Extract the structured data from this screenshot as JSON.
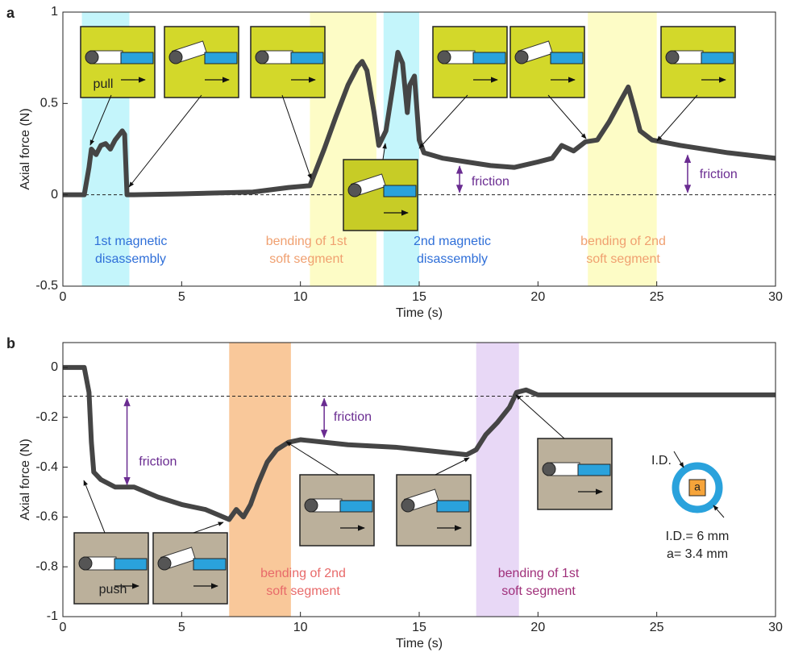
{
  "chart_data": [
    {
      "type": "line",
      "panel_label": "a",
      "xlabel": "Time (s)",
      "ylabel": "Axial force (N)",
      "xlim": [
        0,
        30
      ],
      "ylim": [
        -0.5,
        1
      ],
      "xticks": [
        0,
        5,
        10,
        15,
        20,
        25,
        30
      ],
      "yticks": [
        -0.5,
        0,
        0.5,
        1
      ],
      "reference_line": 0,
      "x": [
        0,
        0.9,
        1.1,
        1.2,
        1.4,
        1.6,
        1.8,
        2.0,
        2.2,
        2.5,
        2.6,
        2.7,
        3,
        5,
        8,
        9.5,
        10.4,
        11,
        11.5,
        12,
        12.4,
        12.6,
        12.8,
        13.1,
        13.3,
        13.6,
        13.9,
        14.1,
        14.3,
        14.5,
        14.6,
        14.8,
        15,
        15.2,
        16,
        17,
        18,
        19,
        20,
        20.6,
        21,
        21.5,
        22,
        22.5,
        23,
        23.5,
        23.8,
        24.1,
        24.3,
        24.8,
        26,
        28,
        30
      ],
      "series": [
        {
          "color": "#454545",
          "values": [
            0,
            0,
            0.15,
            0.25,
            0.22,
            0.27,
            0.28,
            0.25,
            0.3,
            0.35,
            0.33,
            0,
            0,
            0.005,
            0.015,
            0.04,
            0.05,
            0.25,
            0.43,
            0.6,
            0.7,
            0.73,
            0.68,
            0.45,
            0.27,
            0.35,
            0.6,
            0.78,
            0.72,
            0.45,
            0.6,
            0.65,
            0.3,
            0.23,
            0.2,
            0.18,
            0.16,
            0.15,
            0.18,
            0.2,
            0.27,
            0.24,
            0.29,
            0.3,
            0.4,
            0.52,
            0.59,
            0.45,
            0.35,
            0.3,
            0.27,
            0.23,
            0.2
          ]
        }
      ],
      "spans": [
        {
          "start": 0.8,
          "end": 2.8,
          "color": "#c4f5fb",
          "label_color": "#2f6fd8",
          "label": [
            "1st magnetic",
            "disassembly"
          ]
        },
        {
          "start": 10.4,
          "end": 13.2,
          "color": "#fdfcc6",
          "label_color": "#f0a070",
          "label": [
            "bending of 1st",
            "soft segment"
          ]
        },
        {
          "start": 13.5,
          "end": 15.0,
          "color": "#c4f5fb",
          "label_color": "#2f6fd8",
          "label": [
            "2nd magnetic",
            "disassembly"
          ]
        },
        {
          "start": 22.1,
          "end": 25.0,
          "color": "#fdfcc6",
          "label_color": "#f0a070",
          "label": [
            "bending of 2nd",
            "soft segment"
          ]
        }
      ],
      "annotations": [
        "friction",
        "friction"
      ],
      "inset_texts": [
        "pull"
      ]
    },
    {
      "type": "line",
      "panel_label": "b",
      "xlabel": "Time (s)",
      "ylabel": "Axial force (N)",
      "xlim": [
        0,
        30
      ],
      "ylim": [
        -1,
        0.1
      ],
      "xticks": [
        0,
        5,
        10,
        15,
        20,
        25,
        30
      ],
      "yticks": [
        0,
        -0.2,
        -0.4,
        -0.6,
        -0.8,
        -1
      ],
      "reference_line": -0.115,
      "x": [
        0,
        0.9,
        1.1,
        1.2,
        1.3,
        1.6,
        2.2,
        3,
        4,
        5,
        6,
        6.5,
        7,
        7.3,
        7.6,
        7.9,
        8.2,
        8.6,
        9,
        9.5,
        10,
        12,
        14,
        16,
        17,
        17.4,
        17.8,
        18.3,
        18.8,
        19.1,
        19.5,
        20,
        22,
        25,
        30
      ],
      "series": [
        {
          "color": "#454545",
          "values": [
            0,
            0,
            -0.1,
            -0.3,
            -0.42,
            -0.45,
            -0.48,
            -0.48,
            -0.52,
            -0.55,
            -0.57,
            -0.59,
            -0.61,
            -0.57,
            -0.6,
            -0.55,
            -0.47,
            -0.38,
            -0.33,
            -0.3,
            -0.29,
            -0.31,
            -0.32,
            -0.34,
            -0.35,
            -0.33,
            -0.27,
            -0.22,
            -0.16,
            -0.1,
            -0.09,
            -0.11,
            -0.11,
            -0.11,
            -0.11
          ]
        }
      ],
      "spans": [
        {
          "start": 7.0,
          "end": 9.6,
          "color": "#f9c89a",
          "label_color": "#e86a6a",
          "label": [
            "bending of 2nd",
            "soft segment"
          ]
        },
        {
          "start": 17.4,
          "end": 19.2,
          "color": "#e8d8f6",
          "label_color": "#a0307a",
          "label": [
            "bending of 1st",
            "soft segment"
          ]
        }
      ],
      "annotations": [
        "friction",
        "friction"
      ],
      "inset_texts": [
        "push"
      ],
      "ring_diagram": {
        "id_label": "I.D.",
        "a_label": "a",
        "lines": [
          "I.D.= 6 mm",
          "a= 3.4 mm"
        ]
      }
    }
  ]
}
